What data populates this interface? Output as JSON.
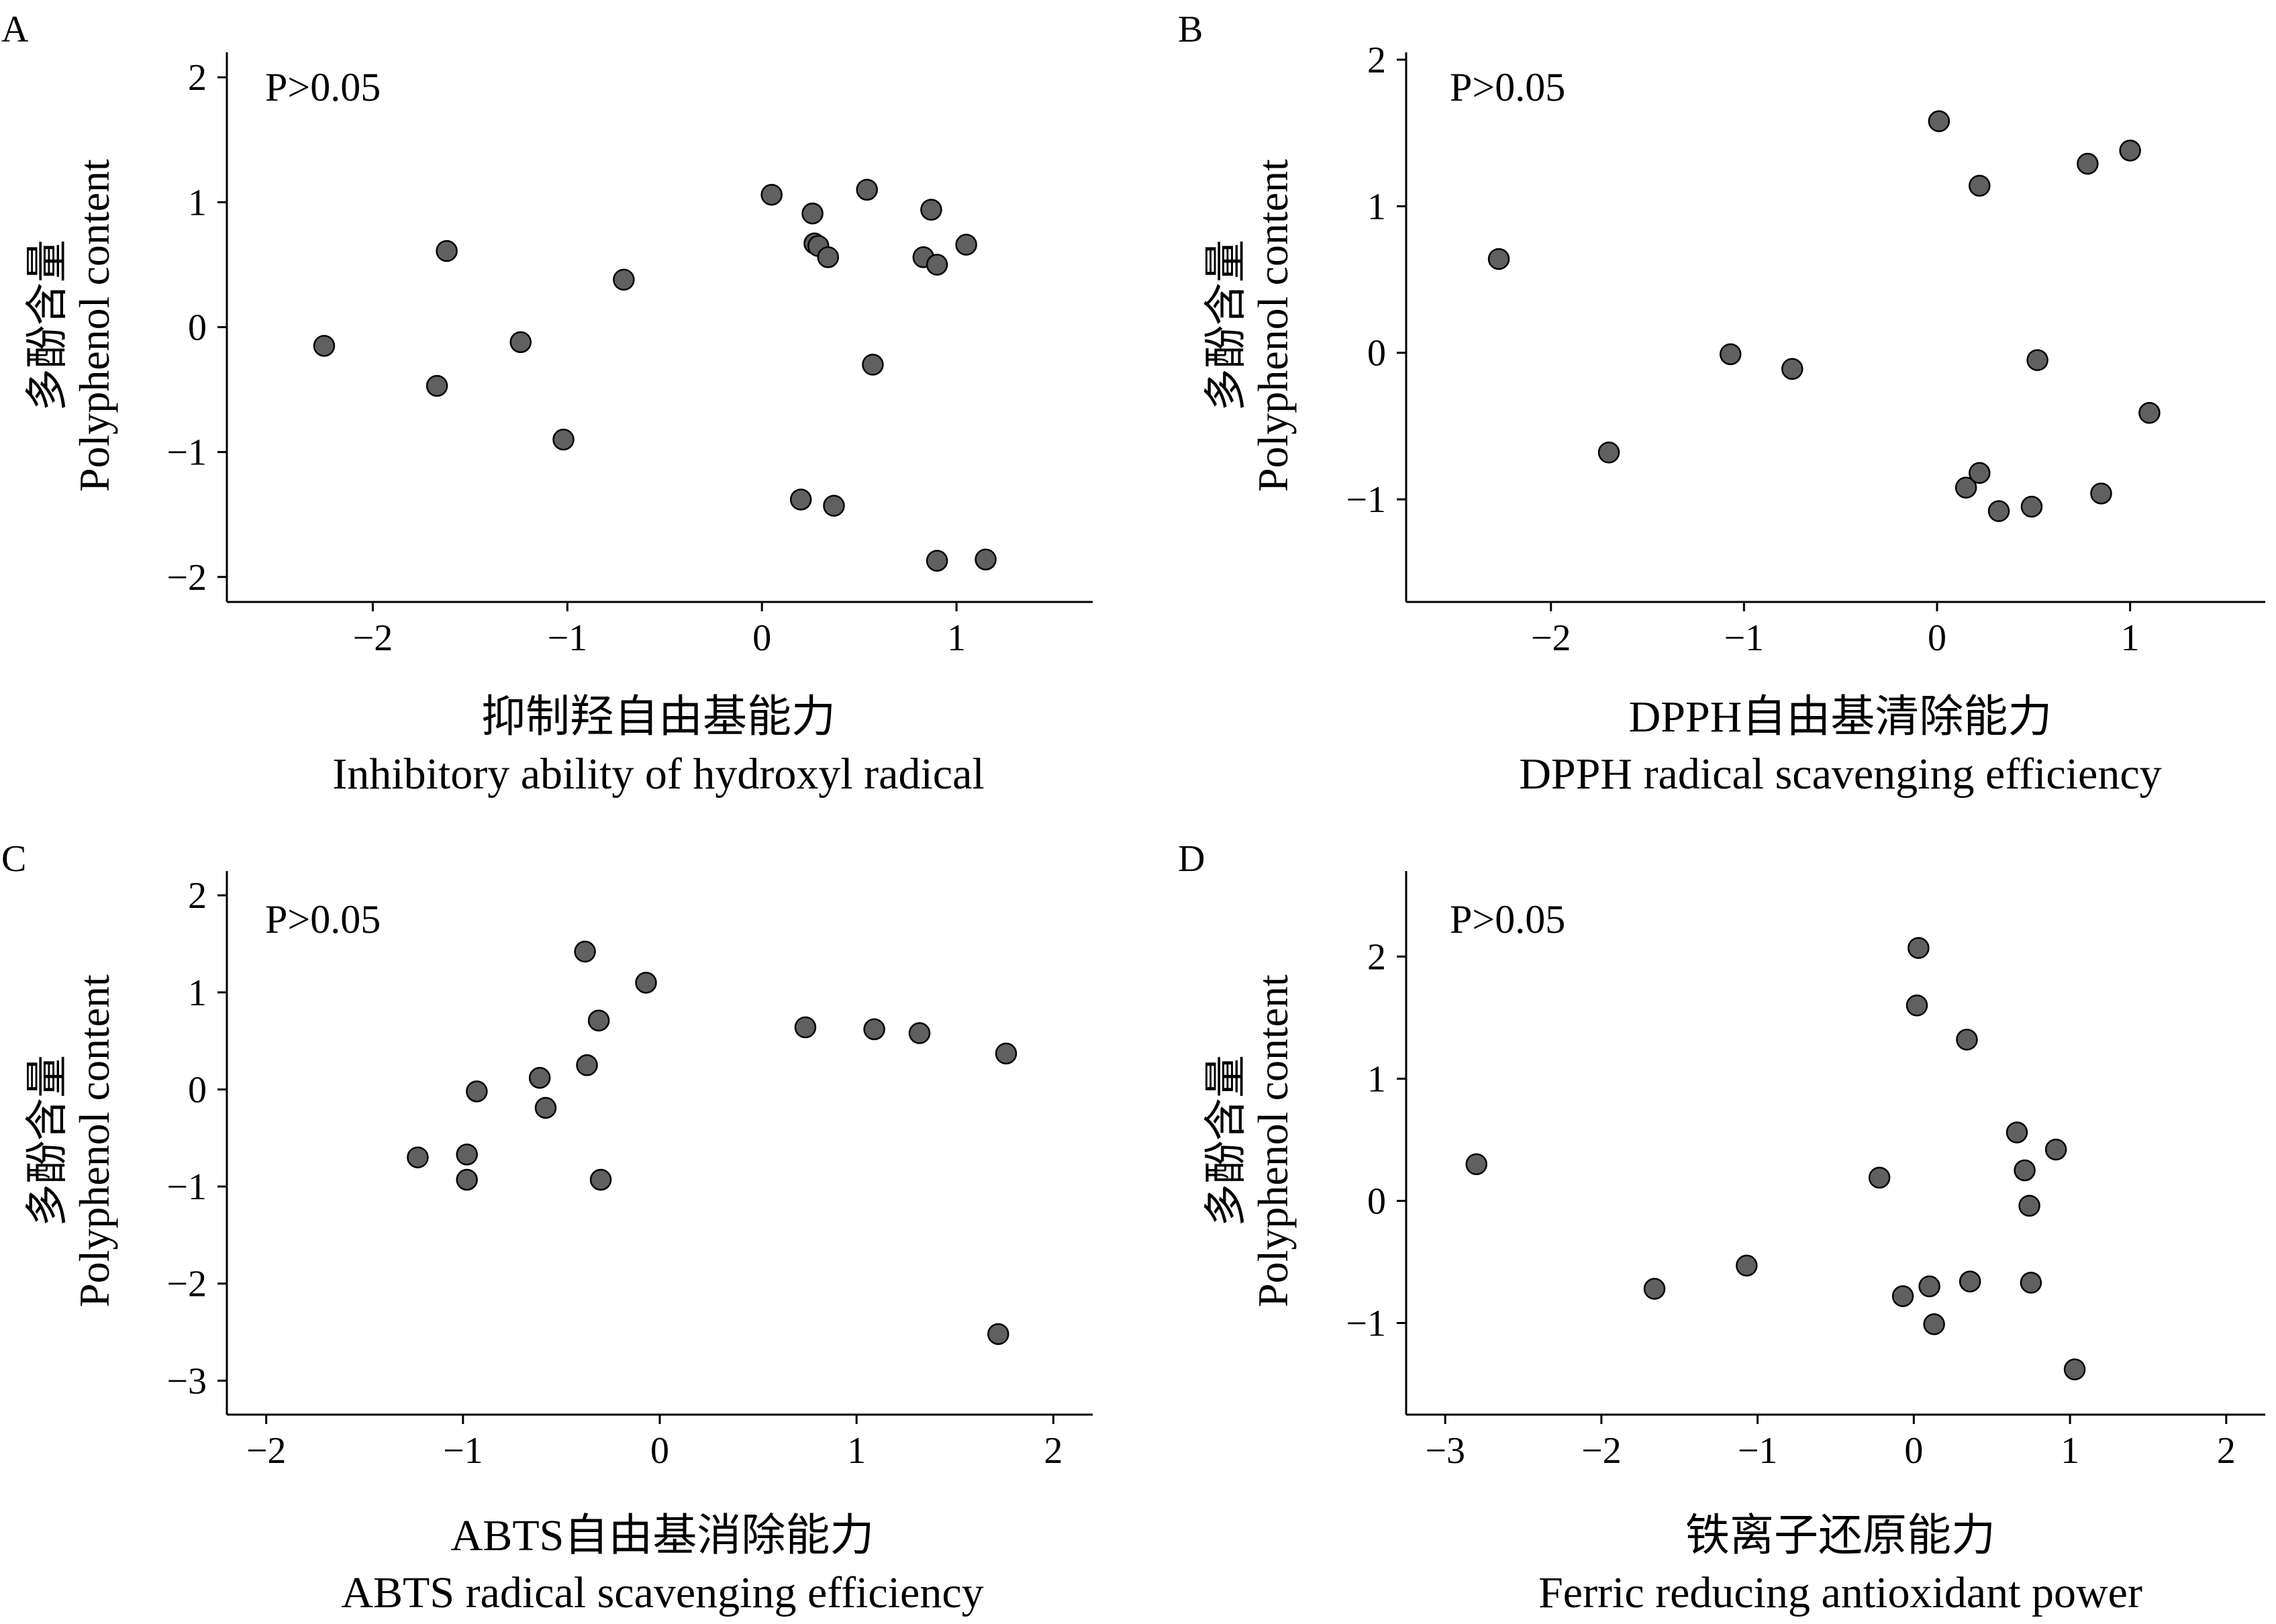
{
  "point_color": "#606060",
  "panels": [
    {
      "letter": "A",
      "p_value": "P>0.05",
      "ylabel_cn": "多酚含量",
      "ylabel_en": "Polyphenol content",
      "xlabel_cn": "抑制羟自由基能力",
      "xlabel_en": "Inhibitory ability of hydroxyl radical"
    },
    {
      "letter": "B",
      "p_value": "P>0.05",
      "ylabel_cn": "多酚含量",
      "ylabel_en": "Polyphenol content",
      "xlabel_cn": "DPPH自由基清除能力",
      "xlabel_en": "DPPH radical scavenging efficiency"
    },
    {
      "letter": "C",
      "p_value": "P>0.05",
      "ylabel_cn": "多酚含量",
      "ylabel_en": "Polyphenol content",
      "xlabel_cn": "ABTS自由基消除能力",
      "xlabel_en": "ABTS radical scavenging efficiency"
    },
    {
      "letter": "D",
      "p_value": "P>0.05",
      "ylabel_cn": "多酚含量",
      "ylabel_en": "Polyphenol content",
      "xlabel_cn": "铁离子还原能力",
      "xlabel_en": "Ferric reducing antioxidant power"
    }
  ],
  "chart_data": [
    {
      "type": "scatter",
      "panel": "A",
      "xlabel": "抑制羟自由基能力 Inhibitory ability of hydroxyl radical",
      "ylabel": "多酚含量 Polyphenol content",
      "annotation": "P>0.05",
      "xlim": [
        -2.75,
        1.7
      ],
      "ylim": [
        -2.2,
        2.2
      ],
      "xticks": [
        -2,
        -1,
        0,
        1
      ],
      "yticks": [
        -2,
        -1,
        0,
        1,
        2
      ],
      "x": [
        -2.25,
        -1.62,
        -1.67,
        -1.24,
        -1.02,
        -0.71,
        0.05,
        0.26,
        0.27,
        0.29,
        0.34,
        0.54,
        0.57,
        0.2,
        0.37,
        0.83,
        0.87,
        0.9,
        1.05,
        0.9,
        1.15
      ],
      "y": [
        -0.15,
        0.61,
        -0.47,
        -0.12,
        -0.9,
        0.38,
        1.06,
        0.91,
        0.67,
        0.65,
        0.56,
        1.1,
        -0.3,
        -1.38,
        -1.43,
        0.56,
        0.94,
        0.5,
        0.66,
        -1.87,
        -1.86
      ]
    },
    {
      "type": "scatter",
      "panel": "B",
      "xlabel": "DPPH自由基清除能力 DPPH radical scavenging efficiency",
      "ylabel": "多酚含量 Polyphenol content",
      "annotation": "P>0.05",
      "xlim": [
        -2.75,
        1.7
      ],
      "ylim": [
        -1.7,
        2.05
      ],
      "xticks": [
        -2,
        -1,
        0,
        1
      ],
      "yticks": [
        -1,
        0,
        1,
        2
      ],
      "x": [
        -2.27,
        -1.7,
        -1.07,
        -0.75,
        0.01,
        0.22,
        0.52,
        0.78,
        1.0,
        1.1,
        0.15,
        0.22,
        0.32,
        0.49,
        0.85
      ],
      "y": [
        0.64,
        -0.68,
        -0.01,
        -0.11,
        1.58,
        1.14,
        -0.05,
        1.29,
        1.38,
        -0.41,
        -0.92,
        -0.82,
        -1.08,
        -1.05,
        -0.96
      ]
    },
    {
      "type": "scatter",
      "panel": "C",
      "xlabel": "ABTS自由基消除能力 ABTS radical scavenging efficiency",
      "ylabel": "多酚含量 Polyphenol content",
      "annotation": "P>0.05",
      "xlim": [
        -2.2,
        2.2
      ],
      "ylim": [
        -3.35,
        2.25
      ],
      "xticks": [
        -2,
        -1,
        0,
        1,
        2
      ],
      "yticks": [
        -3,
        -2,
        -1,
        0,
        1,
        2
      ],
      "x": [
        -1.23,
        -0.98,
        -0.98,
        -0.93,
        -0.61,
        -0.58,
        -0.38,
        -0.37,
        -0.31,
        -0.3,
        -0.07,
        0.74,
        1.09,
        1.32,
        1.76,
        1.72
      ],
      "y": [
        -0.7,
        -0.67,
        -0.93,
        -0.02,
        0.12,
        -0.19,
        1.42,
        0.25,
        0.71,
        -0.93,
        1.1,
        0.64,
        0.62,
        0.58,
        0.37,
        -2.52
      ]
    },
    {
      "type": "scatter",
      "panel": "D",
      "xlabel": "铁离子还原能力 Ferric reducing antioxidant power",
      "ylabel": "多酚含量 Polyphenol content",
      "annotation": "P>0.05",
      "xlim": [
        -3.25,
        2.25
      ],
      "ylim": [
        -1.75,
        2.7
      ],
      "xticks": [
        -3,
        -2,
        -1,
        0,
        1,
        2
      ],
      "yticks": [
        -1,
        0,
        1,
        2
      ],
      "x": [
        -2.8,
        -1.66,
        -1.07,
        -0.22,
        -0.07,
        0.03,
        0.02,
        0.1,
        0.13,
        0.34,
        0.36,
        0.66,
        0.71,
        0.74,
        0.75,
        0.91,
        1.03
      ],
      "y": [
        0.3,
        -0.72,
        -0.53,
        0.19,
        -0.78,
        2.07,
        1.6,
        -0.7,
        -1.01,
        1.32,
        -0.66,
        0.56,
        0.25,
        -0.04,
        -0.67,
        0.42,
        -1.38
      ]
    }
  ]
}
